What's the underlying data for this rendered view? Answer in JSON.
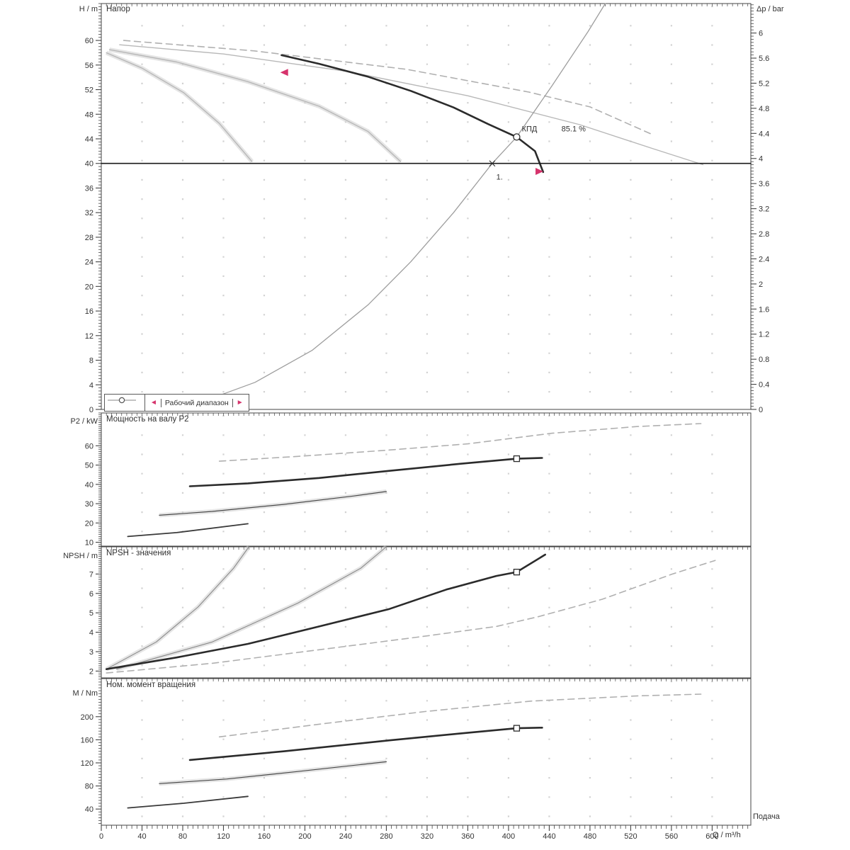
{
  "page": {
    "background": "#ffffff"
  },
  "colors": {
    "text": "#333333",
    "axis": "#444444",
    "grid_dot": "#d2d2d2",
    "curve_black": "#2b2b2b",
    "curve_gray": "#b8b8b8",
    "curve_dashed_gray": "#b0b0b0",
    "efficiency_gray": "#9e9e9e",
    "marker_red": "#d6336c",
    "halo_gray": "#d0d0d0"
  },
  "x_axis": {
    "label": "Q / m³/h",
    "flow_label": "Подача",
    "min": 0,
    "max": 638,
    "minor_step": 5,
    "labeled_ticks": [
      0,
      40,
      80,
      120,
      160,
      200,
      240,
      280,
      320,
      360,
      400,
      440,
      480,
      520,
      560,
      600
    ]
  },
  "legend": {
    "curve_symbol": "line-with-circle-marker",
    "working_range_label": "Рабочий диапазон"
  },
  "chart_data": [
    {
      "id": "head",
      "type": "line",
      "title": "Напор",
      "y_axis": {
        "label": "H / m",
        "min": 0,
        "max": 66,
        "minor_step": 0.5,
        "labeled_ticks": [
          0,
          4,
          8,
          12,
          16,
          20,
          24,
          28,
          32,
          36,
          40,
          44,
          48,
          52,
          56,
          60
        ]
      },
      "y2_axis": {
        "label": "Δp / bar",
        "min": 0,
        "max": 6.47,
        "minor_step": 0.05,
        "labeled_ticks": [
          0,
          0.4,
          0.8,
          1.2,
          1.6,
          2,
          2.4,
          2.8,
          3.2,
          3.6,
          4,
          4.4,
          4.8,
          5.2,
          5.6,
          6
        ]
      },
      "series": [
        {
          "name": "pump-curve-small-1",
          "color": "#b8b8b8",
          "width": 1.4,
          "halo": true,
          "points": [
            [
              5,
              58
            ],
            [
              40,
              55.5
            ],
            [
              81,
              51.5
            ],
            [
              116,
              46.5
            ],
            [
              148,
              40.3
            ]
          ]
        },
        {
          "name": "pump-curve-small-2",
          "color": "#b8b8b8",
          "width": 1.4,
          "halo": true,
          "points": [
            [
              8,
              58.5
            ],
            [
              74,
              56.5
            ],
            [
              144,
              53.3
            ],
            [
              214,
              49.3
            ],
            [
              262,
              45.2
            ],
            [
              294,
              40.3
            ]
          ]
        },
        {
          "name": "pump-curve-full",
          "color": "#b8b8b8",
          "width": 1.4,
          "points": [
            [
              18,
              59.3
            ],
            [
              120,
              57.8
            ],
            [
              240,
              55
            ],
            [
              360,
              51
            ],
            [
              470,
              46.3
            ],
            [
              540,
              42.5
            ],
            [
              591,
              39.8
            ]
          ]
        },
        {
          "name": "pump-curve-max-dashed",
          "color": "#b0b0b0",
          "width": 1.6,
          "dash": "9 6",
          "points": [
            [
              22,
              60
            ],
            [
              150,
              58.3
            ],
            [
              300,
              55.3
            ],
            [
              420,
              51.6
            ],
            [
              480,
              49.2
            ],
            [
              540,
              44.8
            ]
          ]
        },
        {
          "name": "pump-curve-selected",
          "color": "#2b2b2b",
          "width": 2.6,
          "points": [
            [
              177,
              57.6
            ],
            [
              214,
              56.2
            ],
            [
              262,
              54.1
            ],
            [
              304,
              51.8
            ],
            [
              346,
              49.1
            ],
            [
              380,
              46.4
            ],
            [
              408,
              44.3
            ],
            [
              426,
              42
            ],
            [
              434,
              38.6
            ]
          ]
        },
        {
          "name": "efficiency-curve",
          "color": "#9e9e9e",
          "width": 1.3,
          "points": [
            [
              95,
              1
            ],
            [
              151,
              4.4
            ],
            [
              207,
              9.6
            ],
            [
              262,
              17
            ],
            [
              304,
              24
            ],
            [
              346,
              32
            ],
            [
              384,
              40
            ],
            [
              408,
              44.3
            ],
            [
              443,
              52.7
            ],
            [
              478,
              61.4
            ],
            [
              495,
              66
            ]
          ]
        },
        {
          "name": "duty-head-line",
          "color": "#1a1a1a",
          "width": 1.6,
          "points": [
            [
              0,
              40
            ],
            [
              638,
              40
            ]
          ]
        }
      ],
      "markers": [
        {
          "type": "arrow-left",
          "q": 180,
          "v": 54.8
        },
        {
          "type": "arrow-right",
          "q": 430,
          "v": 38.7
        },
        {
          "type": "circle",
          "q": 408,
          "v": 44.3
        },
        {
          "type": "cross",
          "q": 384,
          "v": 40
        }
      ],
      "annotations": [
        {
          "text": "1.",
          "q": 388,
          "v": 37.4
        },
        {
          "text": "КПД",
          "q": 413,
          "v": 45.2
        },
        {
          "text": "85.1 %",
          "q": 452,
          "v": 45.2
        }
      ]
    },
    {
      "id": "power",
      "type": "line",
      "title": "Мощность на валу P2",
      "y_axis": {
        "label": "P2 / kW",
        "min": 8,
        "max": 77,
        "minor_step": 1,
        "labeled_ticks": [
          10,
          20,
          30,
          40,
          50,
          60
        ]
      },
      "series": [
        {
          "name": "power-curve-1",
          "color": "#3a3a3a",
          "width": 1.8,
          "points": [
            [
              26,
              13
            ],
            [
              74,
              15
            ],
            [
              144,
              19.6
            ]
          ]
        },
        {
          "name": "power-curve-2",
          "color": "#4a4a4a",
          "width": 1.2,
          "halo": true,
          "points": [
            [
              57,
              24
            ],
            [
              109,
              26
            ],
            [
              179,
              29.6
            ],
            [
              248,
              34
            ],
            [
              280,
              36.3
            ]
          ]
        },
        {
          "name": "power-curve-selected",
          "color": "#2b2b2b",
          "width": 2.6,
          "points": [
            [
              87,
              39
            ],
            [
              144,
              40.5
            ],
            [
              214,
              43.3
            ],
            [
              283,
              47
            ],
            [
              353,
              50.7
            ],
            [
              408,
              53.3
            ],
            [
              433,
              53.7
            ]
          ]
        },
        {
          "name": "power-curve-max-dashed",
          "color": "#b0b0b0",
          "width": 1.6,
          "dash": "9 6",
          "points": [
            [
              116,
              52
            ],
            [
              193,
              54.5
            ],
            [
              276,
              57.5
            ],
            [
              360,
              61
            ],
            [
              443,
              66.5
            ],
            [
              527,
              70
            ],
            [
              589,
              71.5
            ]
          ]
        }
      ],
      "markers": [
        {
          "type": "square",
          "q": 408,
          "v": 53.3
        }
      ],
      "annotations": []
    },
    {
      "id": "npsh",
      "type": "line",
      "title": "NPSH - значения",
      "y_axis": {
        "label": "NPSH / m",
        "min": 1.65,
        "max": 8.4,
        "minor_step": 0.1,
        "labeled_ticks": [
          2,
          3,
          4,
          5,
          6,
          7
        ]
      },
      "series": [
        {
          "name": "npsh-steep-1",
          "color": "#8a8a8a",
          "width": 1.1,
          "halo": true,
          "points": [
            [
              5,
              2.1
            ],
            [
              54,
              3.5
            ],
            [
              95,
              5.3
            ],
            [
              130,
              7.3
            ],
            [
              145,
              8.4
            ]
          ]
        },
        {
          "name": "npsh-steep-2",
          "color": "#8a8a8a",
          "width": 1.1,
          "halo": true,
          "points": [
            [
              15,
              2.1
            ],
            [
              109,
              3.5
            ],
            [
              193,
              5.5
            ],
            [
              255,
              7.3
            ],
            [
              280,
              8.4
            ]
          ]
        },
        {
          "name": "npsh-dashed",
          "color": "#b0b0b0",
          "width": 1.6,
          "dash": "9 6",
          "points": [
            [
              5,
              1.9
            ],
            [
              109,
              2.4
            ],
            [
              214,
              3.1
            ],
            [
              318,
              3.8
            ],
            [
              388,
              4.3
            ],
            [
              429,
              4.8
            ],
            [
              492,
              5.7
            ],
            [
              561,
              7
            ],
            [
              603,
              7.7
            ]
          ]
        },
        {
          "name": "npsh-curve-selected",
          "color": "#2b2b2b",
          "width": 2.6,
          "points": [
            [
              5,
              2.1
            ],
            [
              74,
              2.7
            ],
            [
              144,
              3.4
            ],
            [
              214,
              4.3
            ],
            [
              283,
              5.2
            ],
            [
              339,
              6.2
            ],
            [
              388,
              6.9
            ],
            [
              408,
              7.1
            ],
            [
              436,
              8
            ]
          ]
        }
      ],
      "markers": [
        {
          "type": "square",
          "q": 408,
          "v": 7.1
        }
      ],
      "annotations": []
    },
    {
      "id": "torque",
      "type": "line",
      "title": "Ном. момент вращения",
      "y_axis": {
        "label": "M / Nm",
        "min": 12,
        "max": 266,
        "minor_step": 5,
        "labeled_ticks": [
          40,
          80,
          120,
          160,
          200
        ]
      },
      "series": [
        {
          "name": "torque-curve-1",
          "color": "#3a3a3a",
          "width": 1.8,
          "points": [
            [
              26,
              42
            ],
            [
              81,
              50
            ],
            [
              144,
              62
            ]
          ]
        },
        {
          "name": "torque-curve-2",
          "color": "#4a4a4a",
          "width": 1.2,
          "halo": true,
          "points": [
            [
              57,
              84
            ],
            [
              123,
              92
            ],
            [
              193,
              105
            ],
            [
              255,
              117
            ],
            [
              280,
              122
            ]
          ]
        },
        {
          "name": "torque-curve-selected",
          "color": "#2b2b2b",
          "width": 2.6,
          "points": [
            [
              87,
              125
            ],
            [
              179,
              140
            ],
            [
              283,
              159
            ],
            [
              353,
              171
            ],
            [
              408,
              180
            ],
            [
              433,
              181
            ]
          ]
        },
        {
          "name": "torque-curve-max-dashed",
          "color": "#b0b0b0",
          "width": 1.6,
          "dash": "9 6",
          "points": [
            [
              116,
              165
            ],
            [
              214,
              187
            ],
            [
              318,
              209
            ],
            [
              422,
              227
            ],
            [
              527,
              236
            ],
            [
              589,
              239
            ]
          ]
        }
      ],
      "markers": [
        {
          "type": "square",
          "q": 408,
          "v": 180
        }
      ],
      "annotations": []
    }
  ]
}
